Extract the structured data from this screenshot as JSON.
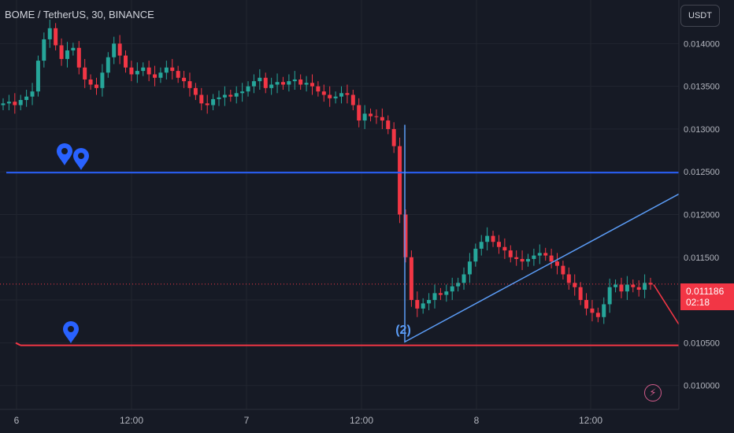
{
  "header": {
    "symbol": "BOME / TetherUS, 30, BINANCE"
  },
  "currency_button": {
    "label": "USDT"
  },
  "last_price": {
    "value": "0.011186",
    "countdown": "02:18"
  },
  "icons": {
    "alerts": "map-pin-icon",
    "replay": "lightning-icon"
  },
  "colors": {
    "up": "#26a69a",
    "down": "#f23645",
    "resistance": "#2962ff",
    "support": "#f23645",
    "triangle": "#5b9cf6",
    "background": "#161a25"
  },
  "annotation": {
    "label": "(2)"
  },
  "chart_data": {
    "type": "candlestick",
    "title": "",
    "yaxis": {
      "ylim": [
        0.00972,
        0.01451
      ],
      "ticks": [
        "0.014000",
        "0.013500",
        "0.013000",
        "0.012500",
        "0.012000",
        "0.011500",
        "0.011000",
        "0.010500",
        "0.010000"
      ]
    },
    "xaxis": {
      "ticks": [
        "6",
        "12:00",
        "7",
        "12:00",
        "8",
        "12:00"
      ]
    },
    "horizontal_lines": [
      {
        "name": "resistance",
        "price": 0.01249
      },
      {
        "name": "support",
        "price": 0.01047
      }
    ],
    "drawings": {
      "triangle": [
        [
          0.01305,
          0.01051
        ],
        [
          0.01051,
          0.01051
        ],
        [
          0.01051,
          0.01224
        ]
      ]
    },
    "series": [
      {
        "name": "price",
        "values": [
          0.0133,
          0.01332,
          0.01328,
          0.01334,
          0.01338,
          0.01344,
          0.0138,
          0.01405,
          0.01418,
          0.01398,
          0.01382,
          0.01392,
          0.01395,
          0.01372,
          0.01358,
          0.01352,
          0.01348,
          0.01366,
          0.01384,
          0.014,
          0.01386,
          0.01372,
          0.01364,
          0.01368,
          0.01372,
          0.01364,
          0.0136,
          0.01366,
          0.01372,
          0.01368,
          0.0136,
          0.01356,
          0.01348,
          0.0134,
          0.0133,
          0.01328,
          0.01335,
          0.01337,
          0.0134,
          0.01338,
          0.01342,
          0.01344,
          0.0135,
          0.01356,
          0.0136,
          0.01348,
          0.01352,
          0.01355,
          0.01352,
          0.01356,
          0.01358,
          0.01352,
          0.01354,
          0.0135,
          0.01344,
          0.0134,
          0.01336,
          0.01338,
          0.01342,
          0.0134,
          0.01328,
          0.0131,
          0.01318,
          0.01315,
          0.01314,
          0.0131,
          0.013,
          0.0128,
          0.012,
          0.0115,
          0.011,
          0.0109,
          0.01096,
          0.011,
          0.01108,
          0.01106,
          0.0111,
          0.01116,
          0.0112,
          0.0113,
          0.01145,
          0.0116,
          0.01168,
          0.01175,
          0.01168,
          0.01162,
          0.01158,
          0.0115,
          0.01148,
          0.01145,
          0.01148,
          0.01152,
          0.01155,
          0.01152,
          0.01145,
          0.0114,
          0.0113,
          0.0112,
          0.01115,
          0.011,
          0.0109,
          0.01085,
          0.0108,
          0.01095,
          0.01115,
          0.01118,
          0.0111,
          0.01118,
          0.01115,
          0.01112,
          0.0112,
          0.01118
        ]
      }
    ]
  }
}
